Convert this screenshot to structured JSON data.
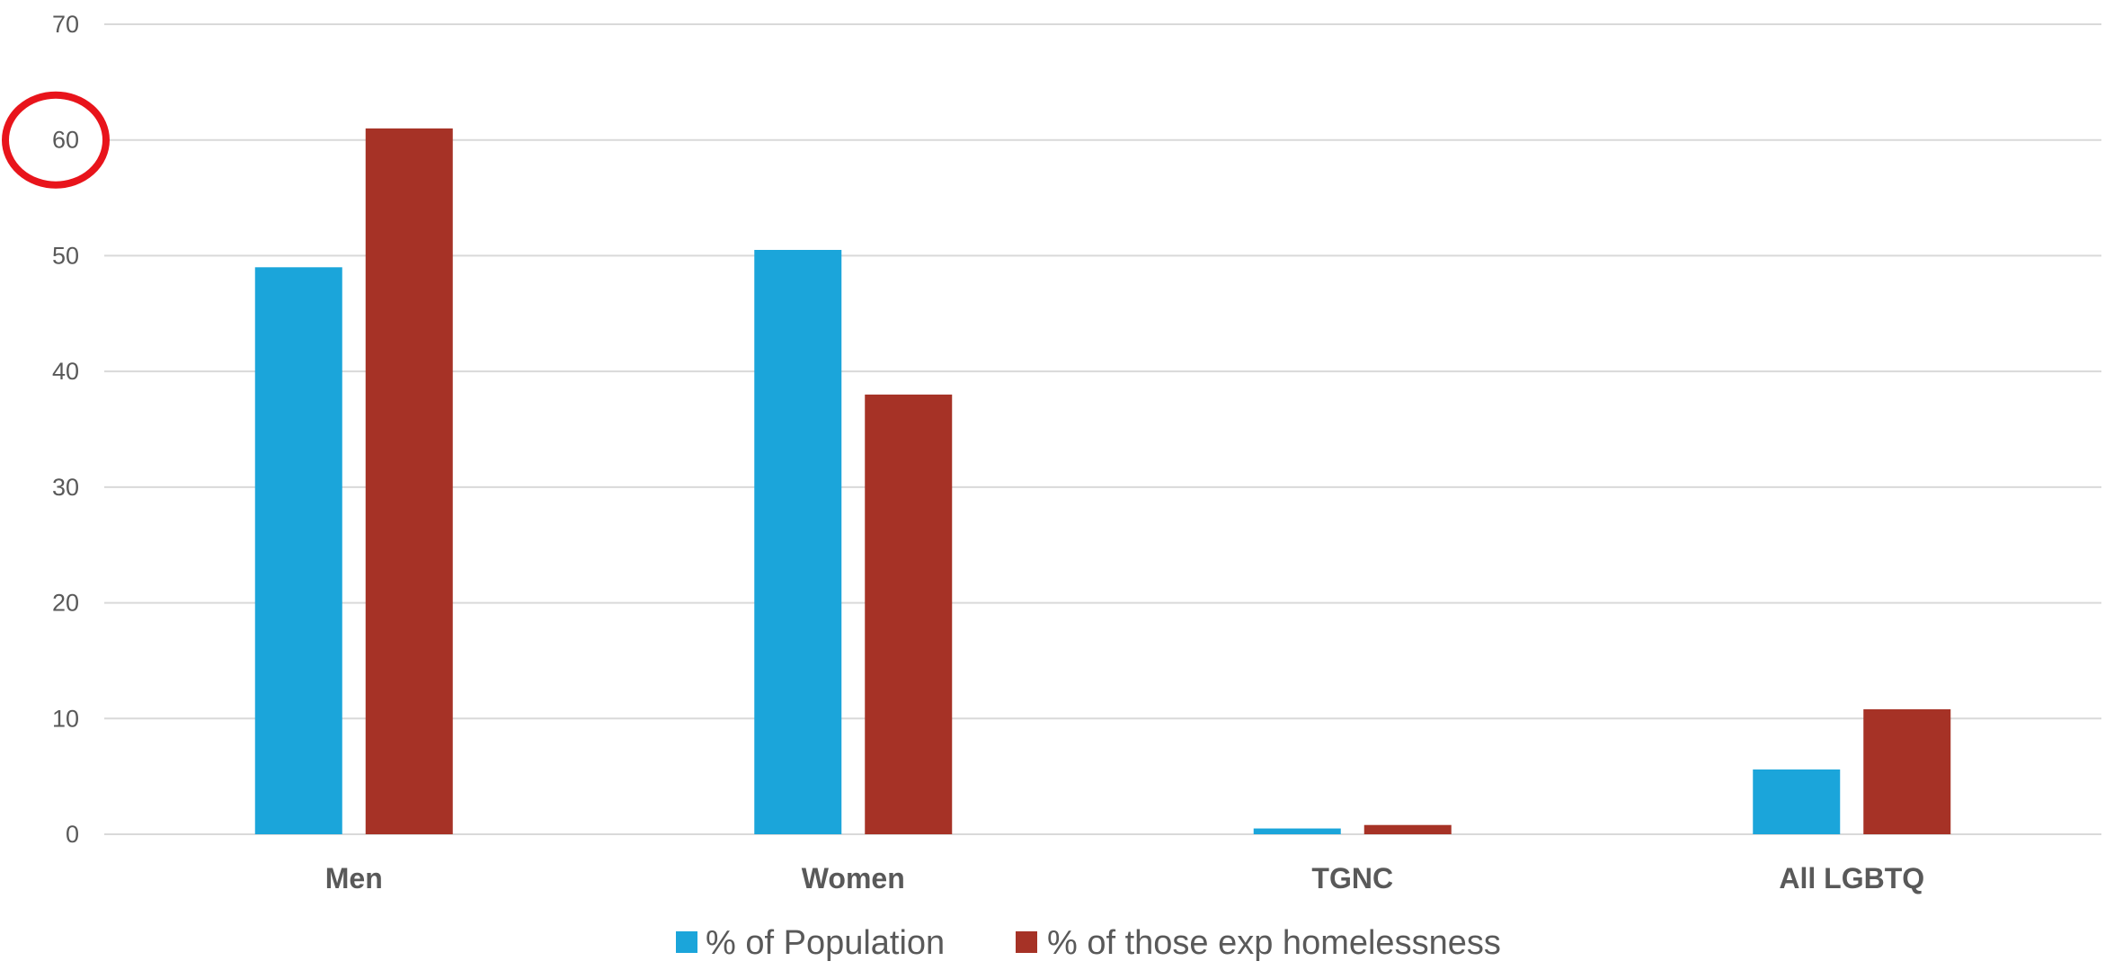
{
  "chart_data": {
    "type": "bar",
    "categories": [
      "Men",
      "Women",
      "TGNC",
      "All LGBTQ"
    ],
    "series": [
      {
        "name": "% of Population",
        "color": "#1BA5DA",
        "values": [
          49,
          50.5,
          0.5,
          5.6
        ]
      },
      {
        "name": "% of those exp homelessness",
        "color": "#A63226",
        "values": [
          61,
          38,
          0.8,
          10.8
        ]
      }
    ],
    "ylim": [
      0,
      70
    ],
    "yticks": [
      0,
      10,
      20,
      30,
      40,
      50,
      60,
      70
    ],
    "grid": true,
    "legend_position": "bottom",
    "title": "",
    "xlabel": "",
    "ylabel": "",
    "annotation": {
      "type": "circle",
      "target_tick": 60,
      "color": "#E8141B"
    }
  }
}
